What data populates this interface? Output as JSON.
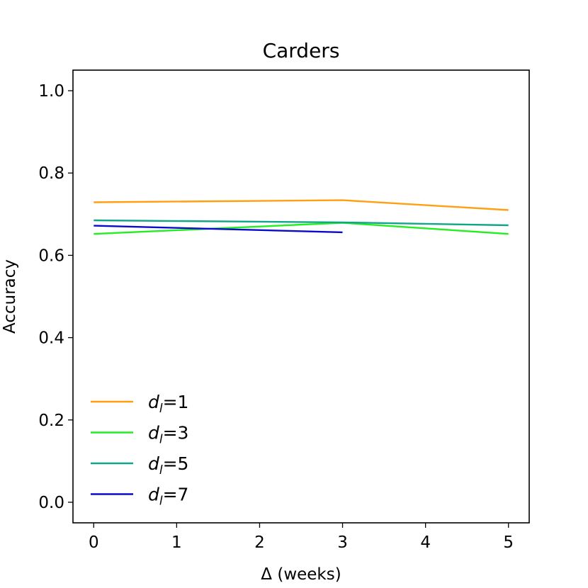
{
  "chart_data": {
    "type": "line",
    "title": "Carders",
    "xlabel": "Δ (weeks)",
    "ylabel": "Accuracy",
    "xlim": [
      -0.25,
      5.25
    ],
    "ylim": [
      -0.05,
      1.05
    ],
    "xticks": [
      0,
      1,
      2,
      3,
      4,
      5
    ],
    "xtick_labels": [
      "0",
      "1",
      "2",
      "3",
      "4",
      "5"
    ],
    "yticks": [
      0.0,
      0.2,
      0.4,
      0.6,
      0.8,
      1.0
    ],
    "ytick_labels": [
      "0.0",
      "0.2",
      "0.4",
      "0.6",
      "0.8",
      "1.0"
    ],
    "grid": false,
    "legend_position": "lower-left",
    "series": [
      {
        "name_base": "d",
        "name_sub": "l",
        "name_suffix": "=1",
        "color": "#ff9f12",
        "x": [
          0,
          3,
          5
        ],
        "y": [
          0.729,
          0.734,
          0.71
        ]
      },
      {
        "name_base": "d",
        "name_sub": "l",
        "name_suffix": "=3",
        "color": "#22ee22",
        "x": [
          0,
          3,
          5
        ],
        "y": [
          0.652,
          0.679,
          0.652
        ]
      },
      {
        "name_base": "d",
        "name_sub": "l",
        "name_suffix": "=5",
        "color": "#13a58a",
        "x": [
          0,
          3,
          5
        ],
        "y": [
          0.685,
          0.68,
          0.673
        ]
      },
      {
        "name_base": "d",
        "name_sub": "l",
        "name_suffix": "=7",
        "color": "#0a0acc",
        "x": [
          0,
          3
        ],
        "y": [
          0.672,
          0.656
        ]
      }
    ]
  }
}
